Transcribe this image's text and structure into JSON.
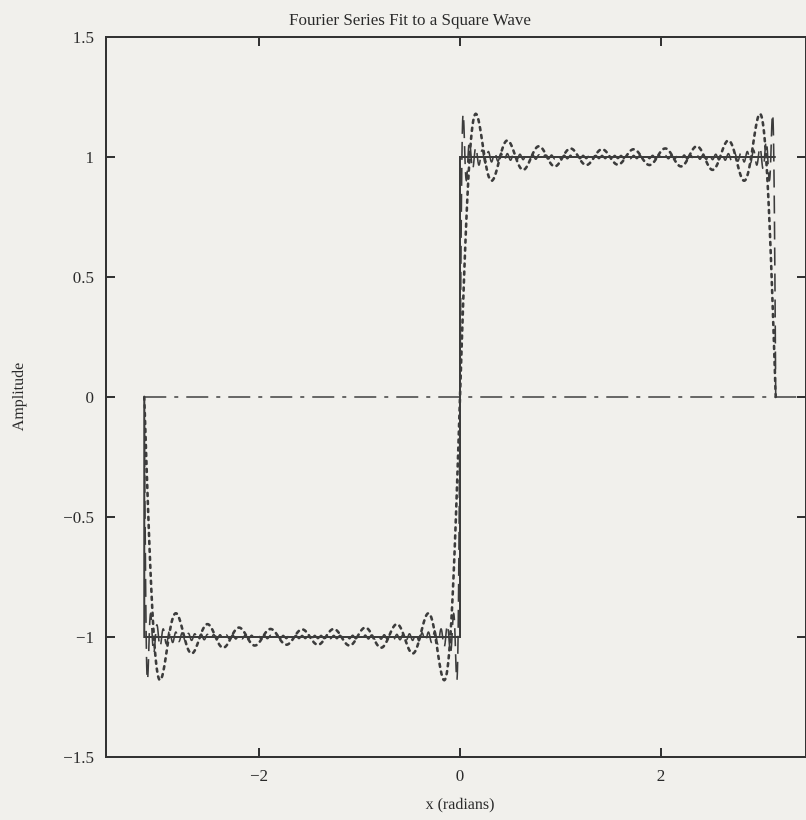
{
  "chart_data": {
    "type": "line",
    "title": "Fourier Series Fit to a Square Wave",
    "xlabel": "x (radians)",
    "ylabel": "Amplitude",
    "xlim": [
      -3.5,
      3.4
    ],
    "ylim": [
      -1.5,
      1.5
    ],
    "grid": false,
    "legend": "none",
    "x_ticks": [
      {
        "value": -2,
        "label": "−2"
      },
      {
        "value": 0,
        "label": "0"
      },
      {
        "value": 2,
        "label": "2"
      }
    ],
    "y_ticks": [
      {
        "value": 1.5,
        "label": "1.5"
      },
      {
        "value": 1,
        "label": "1"
      },
      {
        "value": 0.5,
        "label": "0.5"
      },
      {
        "value": 0,
        "label": "0"
      },
      {
        "value": -0.5,
        "label": "−0.5"
      },
      {
        "value": -1,
        "label": "−1"
      },
      {
        "value": -1.5,
        "label": "−1.5"
      }
    ],
    "series": [
      {
        "style": "solid",
        "description_values": "square wave",
        "points": [
          [
            -3.1416,
            0
          ],
          [
            -3.1416,
            -1
          ],
          [
            0,
            -1
          ],
          [
            0,
            1
          ],
          [
            3.1416,
            1
          ]
        ]
      },
      {
        "style": "dotted",
        "terms": [
          1,
          3,
          5,
          7,
          9,
          11,
          13,
          15,
          17,
          19
        ],
        "x_range": [
          -3.1416,
          3.1416
        ]
      },
      {
        "style": "dashed",
        "terms_max": 99,
        "x_range": [
          -3.1416,
          3.1416
        ]
      },
      {
        "style": "dash-dot",
        "points": [
          [
            -3.1416,
            0
          ],
          [
            3.4,
            0
          ]
        ]
      }
    ],
    "colors": {
      "background": "#f1f0ec",
      "axes": "#3a3a3a",
      "lines": "#3c3c3c"
    }
  }
}
